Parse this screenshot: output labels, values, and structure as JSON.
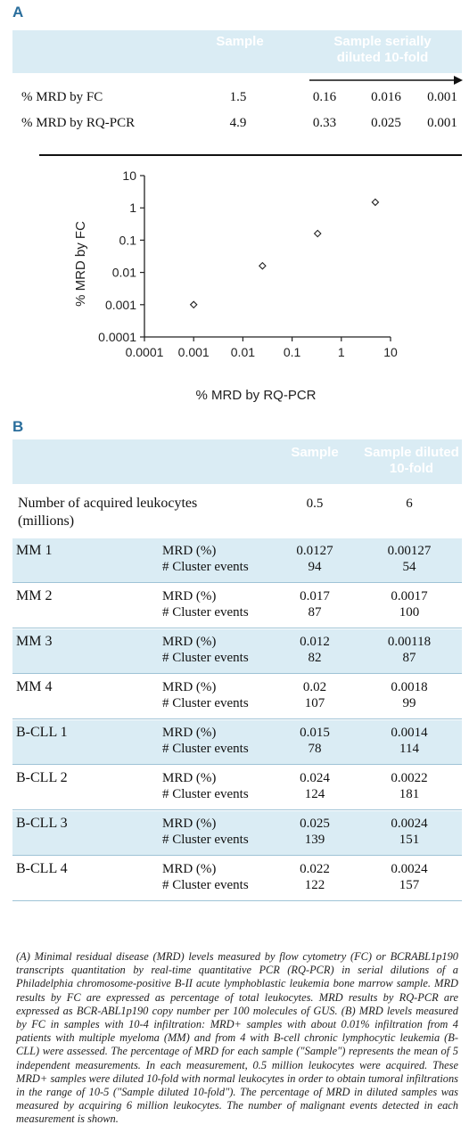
{
  "panelA": {
    "label": "A",
    "header_sample": "Sample",
    "header_serial": "Sample serially diluted 10-fold",
    "header_serial_l1": "Sample serially",
    "header_serial_l2": "diluted 10-fold",
    "rows": [
      {
        "label": "% MRD by FC",
        "values": [
          "1.5",
          "0.16",
          "0.016",
          "0.001"
        ]
      },
      {
        "label": "% MRD by RQ-PCR",
        "values": [
          "4.9",
          "0.33",
          "0.025",
          "0.001"
        ]
      }
    ]
  },
  "chart_data": {
    "type": "scatter",
    "xlabel": "% MRD by RQ-PCR",
    "ylabel": "% MRD by FC",
    "xscale": "log",
    "yscale": "log",
    "xlim": [
      0.0001,
      10
    ],
    "ylim": [
      0.0001,
      10
    ],
    "x_ticks": [
      "0.0001",
      "0.001",
      "0.01",
      "0.1",
      "1",
      "10"
    ],
    "y_ticks": [
      "0.0001",
      "0.001",
      "0.01",
      "0.1",
      "1",
      "10"
    ],
    "marker": "diamond",
    "points": [
      {
        "x": 4.9,
        "y": 1.5
      },
      {
        "x": 0.33,
        "y": 0.16
      },
      {
        "x": 0.025,
        "y": 0.016
      },
      {
        "x": 0.001,
        "y": 0.001
      }
    ]
  },
  "panelB": {
    "label": "B",
    "header_sample": "Sample",
    "header_diluted_l1": "Sample diluted",
    "header_diluted_l2": "10-fold",
    "leuko_label_l1": "Number of acquired leukocytes",
    "leuko_label_l2": "(millions)",
    "leuko_sample": "0.5",
    "leuko_diluted": "6",
    "metric_mrd": "MRD (%)",
    "metric_events": "# Cluster events",
    "rows": [
      {
        "name": "MM 1",
        "mrd_sample": "0.0127",
        "mrd_diluted": "0.00127",
        "ev_sample": "94",
        "ev_diluted": "54",
        "shaded": true
      },
      {
        "name": "MM 2",
        "mrd_sample": "0.017",
        "mrd_diluted": "0.0017",
        "ev_sample": "87",
        "ev_diluted": "100",
        "shaded": false
      },
      {
        "name": "MM 3",
        "mrd_sample": "0.012",
        "mrd_diluted": "0.00118",
        "ev_sample": "82",
        "ev_diluted": "87",
        "shaded": true
      },
      {
        "name": "MM 4",
        "mrd_sample": "0.02",
        "mrd_diluted": "0.0018",
        "ev_sample": "107",
        "ev_diluted": "99",
        "shaded": false
      },
      {
        "name": "B-CLL 1",
        "mrd_sample": "0.015",
        "mrd_diluted": "0.0014",
        "ev_sample": "78",
        "ev_diluted": "114",
        "shaded": true
      },
      {
        "name": "B-CLL 2",
        "mrd_sample": "0.024",
        "mrd_diluted": "0.0022",
        "ev_sample": "124",
        "ev_diluted": "181",
        "shaded": false
      },
      {
        "name": "B-CLL 3",
        "mrd_sample": "0.025",
        "mrd_diluted": "0.0024",
        "ev_sample": "139",
        "ev_diluted": "151",
        "shaded": true
      },
      {
        "name": "B-CLL 4",
        "mrd_sample": "0.022",
        "mrd_diluted": "0.0024",
        "ev_sample": "122",
        "ev_diluted": "157",
        "shaded": false
      }
    ]
  },
  "caption": "(A) Minimal residual disease (MRD) levels measured by flow cytometry (FC) or BCRABL1p190 transcripts quantitation by real-time quantitative PCR (RQ-PCR) in serial dilutions of a Philadelphia chromosome-positive B-II acute lymphoblastic leukemia bone marrow sample. MRD results by FC are expressed as percentage of total leukocytes. MRD results by RQ-PCR are expressed as BCR-ABL1p190 copy number per 100 molecules of GUS. (B) MRD levels measured by FC in samples with 10-4 infiltration: MRD+ samples with about 0.01% infiltration from 4 patients with multiple myeloma (MM) and from 4 with B-cell chronic lymphocytic leukemia (B-CLL) were assessed. The percentage of MRD for each sample (\"Sample\") represents the mean of 5 independent measurements. In each measurement, 0.5 million leukocytes were acquired. These MRD+ samples were diluted 10-fold with normal leukocytes in order to obtain tumoral infiltrations in the range of 10-5 (\"Sample diluted 10-fold\"). The percentage of MRD in diluted samples was measured by acquiring 6 million leukocytes. The number of malignant events detected in each measurement is shown."
}
